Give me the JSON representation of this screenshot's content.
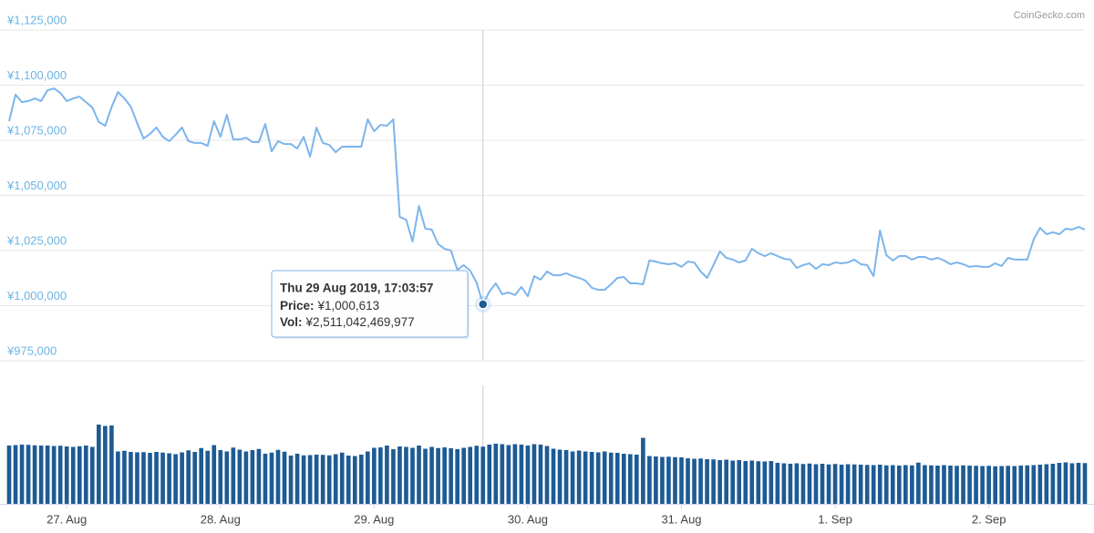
{
  "chart_data": {
    "type": "line",
    "credit": "CoinGecko.com",
    "x": [
      -9,
      -8,
      -7,
      -6,
      -5,
      -4,
      -3,
      -2,
      -1,
      0,
      1,
      2,
      3,
      4,
      5,
      6,
      7,
      8,
      9,
      10,
      11,
      12,
      13,
      14,
      15,
      16,
      17,
      18,
      19,
      20,
      21,
      22,
      23,
      24,
      25,
      26,
      27,
      28,
      29,
      30,
      31,
      32,
      33,
      34,
      35,
      36,
      37,
      38,
      39,
      40,
      41,
      42,
      43,
      44,
      45,
      46,
      47,
      48,
      49,
      50,
      51,
      52,
      53,
      54,
      55,
      56,
      57,
      58,
      59,
      60,
      61,
      62,
      63,
      64,
      65,
      66,
      67,
      68,
      69,
      70,
      71,
      72,
      73,
      74,
      75,
      76,
      77,
      78,
      79,
      80,
      81,
      82,
      83,
      84,
      85,
      86,
      87,
      88,
      89,
      90,
      91,
      92,
      93,
      94,
      95,
      96,
      97,
      98,
      99,
      100,
      101,
      102,
      103,
      104,
      105,
      106,
      107,
      108,
      109,
      110,
      111,
      112,
      113,
      114,
      115,
      116,
      117,
      118,
      119,
      120,
      121,
      122,
      123,
      124,
      125,
      126,
      127,
      128,
      129,
      130,
      131,
      132,
      133,
      134,
      135,
      136,
      137,
      138,
      139,
      140,
      141,
      142,
      143,
      144,
      145,
      146,
      147,
      148,
      149,
      150,
      151,
      152,
      153,
      154,
      155,
      156,
      157,
      158,
      159
    ],
    "xlim": [
      -9,
      159
    ],
    "xticks": [
      {
        "value": 0,
        "label": "27. Aug"
      },
      {
        "value": 24,
        "label": "28. Aug"
      },
      {
        "value": 48,
        "label": "29. Aug"
      },
      {
        "value": 72,
        "label": "30. Aug"
      },
      {
        "value": 96,
        "label": "31. Aug"
      },
      {
        "value": 120,
        "label": "1. Sep"
      },
      {
        "value": 144,
        "label": "2. Sep"
      }
    ],
    "ylim": [
      975000,
      1125000
    ],
    "yticks": [
      {
        "value": 975000,
        "label": "¥975,000"
      },
      {
        "value": 1000000,
        "label": "¥1,000,000"
      },
      {
        "value": 1025000,
        "label": "¥1,025,000"
      },
      {
        "value": 1050000,
        "label": "¥1,050,000"
      },
      {
        "value": 1075000,
        "label": "¥1,075,000"
      },
      {
        "value": 1100000,
        "label": "¥1,100,000"
      },
      {
        "value": 1125000,
        "label": "¥1,125,000"
      }
    ],
    "grid": true,
    "series": [
      {
        "type": "line",
        "color": "#7cb5ec",
        "values": [
          1083700,
          1095700,
          1092300,
          1092800,
          1094000,
          1092800,
          1097700,
          1098500,
          1096500,
          1092800,
          1094000,
          1094800,
          1092300,
          1089900,
          1083300,
          1081600,
          1090000,
          1096900,
          1094000,
          1090300,
          1082800,
          1075800,
          1077900,
          1080800,
          1076600,
          1074600,
          1077500,
          1080800,
          1074600,
          1073800,
          1073800,
          1072500,
          1083700,
          1076600,
          1086600,
          1075400,
          1075400,
          1076200,
          1074200,
          1074200,
          1082400,
          1070000,
          1074600,
          1073300,
          1073300,
          1071300,
          1076600,
          1067600,
          1080800,
          1073800,
          1072900,
          1069600,
          1072100,
          1072100,
          1072100,
          1072100,
          1084500,
          1079100,
          1082000,
          1081600,
          1084500,
          1040300,
          1039000,
          1029100,
          1045200,
          1034900,
          1034500,
          1027900,
          1025800,
          1025000,
          1016300,
          1018400,
          1015900,
          1010500,
          1000613,
          1006400,
          1010100,
          1005200,
          1006000,
          1004800,
          1008500,
          1004300,
          1013400,
          1011800,
          1015500,
          1013800,
          1013800,
          1014700,
          1013400,
          1012600,
          1011400,
          1008100,
          1007200,
          1007200,
          1009700,
          1012600,
          1013000,
          1010100,
          1010100,
          1009700,
          1020500,
          1020000,
          1019200,
          1018800,
          1019200,
          1017600,
          1020000,
          1019600,
          1015500,
          1012600,
          1018400,
          1024600,
          1021700,
          1020900,
          1019600,
          1020500,
          1025800,
          1023800,
          1022500,
          1023800,
          1022500,
          1021300,
          1020900,
          1017100,
          1018400,
          1019200,
          1016700,
          1018800,
          1018400,
          1019600,
          1019200,
          1019600,
          1020900,
          1018800,
          1018400,
          1013400,
          1034100,
          1022900,
          1020500,
          1022500,
          1022500,
          1020900,
          1022100,
          1022100,
          1020900,
          1021700,
          1020500,
          1018800,
          1019600,
          1018800,
          1017600,
          1018000,
          1017600,
          1017600,
          1019200,
          1018000,
          1021700,
          1020900,
          1020900,
          1020900,
          1030000,
          1035300,
          1032400,
          1033300,
          1032400,
          1034900,
          1034500,
          1035700,
          1034500
        ]
      },
      {
        "type": "bar",
        "color": "#1d5b94",
        "values": [
          2560000000000,
          2580000000000,
          2600000000000,
          2590000000000,
          2570000000000,
          2560000000000,
          2560000000000,
          2540000000000,
          2550000000000,
          2520000000000,
          2500000000000,
          2530000000000,
          2560000000000,
          2500000000000,
          3480000000000,
          3420000000000,
          3440000000000,
          2300000000000,
          2330000000000,
          2280000000000,
          2260000000000,
          2270000000000,
          2240000000000,
          2280000000000,
          2250000000000,
          2220000000000,
          2180000000000,
          2260000000000,
          2350000000000,
          2280000000000,
          2450000000000,
          2330000000000,
          2580000000000,
          2360000000000,
          2300000000000,
          2470000000000,
          2380000000000,
          2300000000000,
          2360000000000,
          2410000000000,
          2200000000000,
          2250000000000,
          2370000000000,
          2290000000000,
          2120000000000,
          2200000000000,
          2130000000000,
          2140000000000,
          2160000000000,
          2150000000000,
          2130000000000,
          2180000000000,
          2250000000000,
          2120000000000,
          2100000000000,
          2160000000000,
          2300000000000,
          2460000000000,
          2480000000000,
          2560000000000,
          2400000000000,
          2520000000000,
          2500000000000,
          2460000000000,
          2560000000000,
          2420000000000,
          2500000000000,
          2450000000000,
          2480000000000,
          2440000000000,
          2400000000000,
          2460000000000,
          2500000000000,
          2550000000000,
          2511042469977,
          2600000000000,
          2640000000000,
          2620000000000,
          2580000000000,
          2620000000000,
          2600000000000,
          2560000000000,
          2620000000000,
          2600000000000,
          2540000000000,
          2420000000000,
          2380000000000,
          2360000000000,
          2300000000000,
          2340000000000,
          2300000000000,
          2280000000000,
          2260000000000,
          2300000000000,
          2250000000000,
          2240000000000,
          2200000000000,
          2180000000000,
          2160000000000,
          2900000000000,
          2100000000000,
          2080000000000,
          2060000000000,
          2070000000000,
          2050000000000,
          2040000000000,
          2000000000000,
          1980000000000,
          1990000000000,
          1960000000000,
          1950000000000,
          1920000000000,
          1940000000000,
          1900000000000,
          1920000000000,
          1880000000000,
          1900000000000,
          1870000000000,
          1860000000000,
          1880000000000,
          1800000000000,
          1780000000000,
          1760000000000,
          1780000000000,
          1750000000000,
          1770000000000,
          1740000000000,
          1760000000000,
          1730000000000,
          1750000000000,
          1720000000000,
          1740000000000,
          1730000000000,
          1720000000000,
          1710000000000,
          1700000000000,
          1720000000000,
          1690000000000,
          1700000000000,
          1680000000000,
          1700000000000,
          1690000000000,
          1810000000000,
          1700000000000,
          1690000000000,
          1680000000000,
          1700000000000,
          1680000000000,
          1670000000000,
          1690000000000,
          1680000000000,
          1670000000000,
          1660000000000,
          1670000000000,
          1650000000000,
          1660000000000,
          1670000000000,
          1660000000000,
          1680000000000,
          1690000000000,
          1700000000000,
          1720000000000,
          1740000000000,
          1760000000000,
          1800000000000,
          1820000000000,
          1780000000000,
          1800000000000,
          1790000000000
        ]
      }
    ],
    "tooltip": {
      "title": "Thu 29 Aug 2019, 17:03:57",
      "rows": [
        {
          "label": "Price:",
          "value": "¥1,000,613"
        },
        {
          "label": "Vol:",
          "value": "¥2,511,042,469,977"
        }
      ]
    }
  }
}
